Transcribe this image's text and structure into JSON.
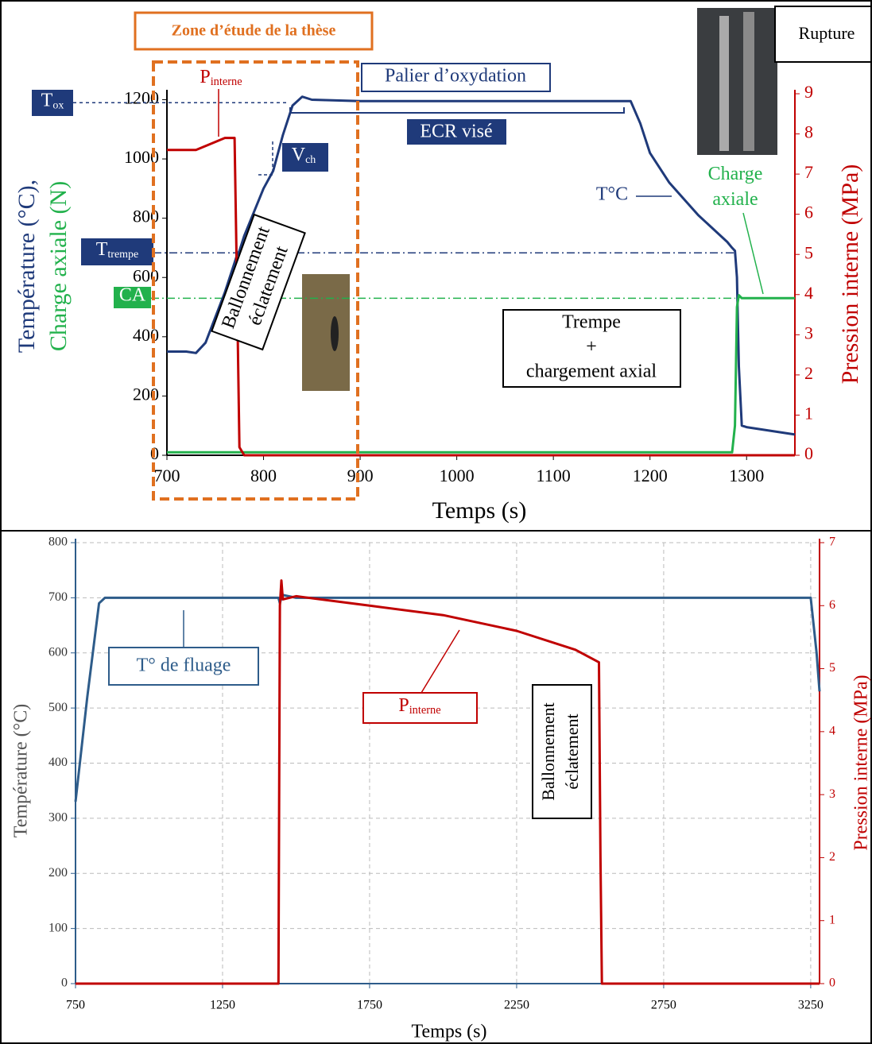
{
  "chart_data": [
    {
      "type": "line",
      "x_label": "Temps (s)",
      "y_label": [
        "Température (°C),",
        "Charge axiale (N)"
      ],
      "y2_label": "Pression interne (MPa)",
      "xlim": [
        700,
        1350
      ],
      "xticks": [
        700,
        800,
        900,
        1000,
        1100,
        1200,
        1300
      ],
      "ylim": [
        0,
        1220
      ],
      "yticks": [
        0,
        200,
        400,
        600,
        800,
        1000,
        1200
      ],
      "y2lim": [
        0,
        9
      ],
      "y2ticks": [
        0,
        1,
        2,
        3,
        4,
        5,
        6,
        7,
        8,
        9
      ],
      "grid": false,
      "x": [
        700,
        720,
        730,
        740,
        760,
        770,
        772,
        775,
        780,
        800,
        810,
        820,
        830,
        840,
        850,
        900,
        1000,
        1100,
        1180,
        1190,
        1200,
        1220,
        1250,
        1280,
        1285,
        1288,
        1290,
        1292,
        1295,
        1300,
        1350
      ],
      "series": [
        {
          "name": "T°C",
          "color": "#1f3a7a",
          "values": [
            350,
            350,
            345,
            380,
            550,
            650,
            670,
            690,
            740,
            900,
            960,
            1080,
            1180,
            1210,
            1200,
            1195,
            1195,
            1195,
            1195,
            1120,
            1020,
            920,
            810,
            720,
            700,
            690,
            600,
            300,
            100,
            95,
            70
          ]
        },
        {
          "name": "Charge axiale",
          "color": "#22b14c",
          "values": [
            10,
            10,
            10,
            10,
            10,
            10,
            10,
            10,
            10,
            10,
            10,
            10,
            10,
            10,
            10,
            10,
            10,
            10,
            10,
            10,
            10,
            10,
            10,
            10,
            10,
            100,
            500,
            540,
            530,
            530,
            530
          ]
        },
        {
          "name": "P",
          "name_sub": "interne",
          "color": "#c00000",
          "axis": "y2",
          "values": [
            7.6,
            7.6,
            7.6,
            7.7,
            7.9,
            7.9,
            5.0,
            0.2,
            0,
            0,
            0,
            0,
            0,
            0,
            0,
            0,
            0,
            0,
            0,
            0,
            0,
            0,
            0,
            0,
            0,
            0,
            0,
            0,
            0,
            0,
            0
          ]
        }
      ],
      "reference_lines": [
        {
          "label": "T",
          "sub": "ox",
          "value": 1190
        },
        {
          "label": "T",
          "sub": "trempe",
          "value": 683
        },
        {
          "label": "CA",
          "value": 530
        }
      ],
      "annotations": [
        {
          "lines": [
            "Zone d’étude de la thèse"
          ]
        },
        {
          "lines": [
            "Palier d’oxydation"
          ]
        },
        {
          "lines": [
            "ECR visé"
          ]
        },
        {
          "lines": [
            "V"
          ],
          "sub": "ch"
        },
        {
          "lines": [
            "Ballonnement",
            "éclatement"
          ]
        },
        {
          "lines": [
            "Trempe",
            "+",
            "chargement axial"
          ]
        },
        {
          "lines": [
            "Rupture"
          ]
        }
      ]
    },
    {
      "type": "line",
      "x_label": "Temps (s)",
      "y_label": [
        "Température (°C)"
      ],
      "y2_label": "Pression interne (MPa)",
      "xlim": [
        750,
        3280
      ],
      "xticks": [
        750,
        1250,
        1750,
        2250,
        2750,
        3250
      ],
      "ylim": [
        0,
        800
      ],
      "yticks": [
        0,
        100,
        200,
        300,
        400,
        500,
        600,
        700,
        800
      ],
      "y2lim": [
        0,
        7
      ],
      "y2ticks": [
        0,
        1,
        2,
        3,
        4,
        5,
        6,
        7
      ],
      "grid": true,
      "x": [
        750,
        790,
        830,
        850,
        1440,
        1445,
        1450,
        1455,
        1500,
        1750,
        2000,
        2250,
        2450,
        2530,
        2535,
        2540,
        3250,
        3270,
        3280
      ],
      "series": [
        {
          "name": "T° de fluage",
          "color": "#2e5c8a",
          "values": [
            330,
            520,
            690,
            700,
            700,
            690,
            700,
            705,
            700,
            700,
            700,
            700,
            700,
            700,
            700,
            700,
            700,
            600,
            530
          ]
        },
        {
          "name": "P",
          "name_sub": "interne",
          "color": "#c00000",
          "axis": "y2",
          "values": [
            0,
            0,
            0,
            0,
            0,
            6.0,
            6.4,
            6.1,
            6.15,
            6.0,
            5.85,
            5.6,
            5.3,
            5.1,
            2,
            0,
            0,
            0,
            0
          ]
        }
      ],
      "annotations": [
        {
          "lines": [
            "Ballonnement",
            "éclatement"
          ]
        }
      ]
    }
  ]
}
